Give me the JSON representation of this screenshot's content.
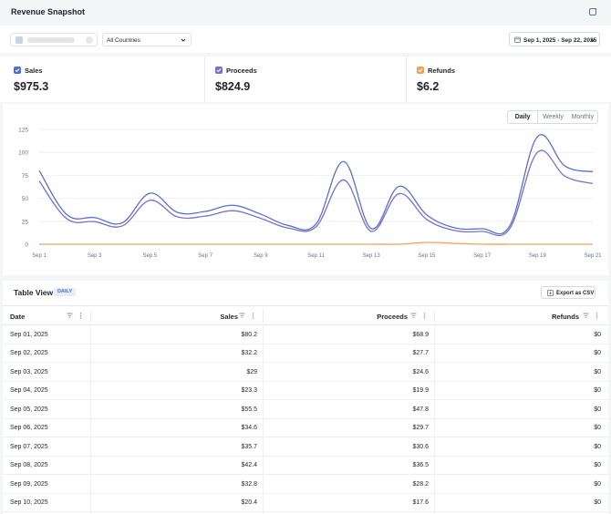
{
  "header": {
    "title": "Revenue Snapshot"
  },
  "filters": {
    "country": "All Countries",
    "date_range": "Sep 1, 2025 - Sep 22, 2025"
  },
  "metrics": [
    {
      "label": "Sales",
      "value": "$975.3",
      "color": "#4a6fd8"
    },
    {
      "label": "Proceeds",
      "value": "$824.9",
      "color": "#7a6fd6"
    },
    {
      "label": "Refunds",
      "value": "$6.2",
      "color": "#f0a25a"
    }
  ],
  "granularity": {
    "options": [
      "Daily",
      "Weekly",
      "Monthly"
    ],
    "selected": "Daily"
  },
  "chart_data": {
    "type": "line",
    "x": [
      "Sep 1",
      "Sep 2",
      "Sep 3",
      "Sep 4",
      "Sep 5",
      "Sep 6",
      "Sep 7",
      "Sep 8",
      "Sep 9",
      "Sep 10",
      "Sep 11",
      "Sep 12",
      "Sep 13",
      "Sep 14",
      "Sep 15",
      "Sep 16",
      "Sep 17",
      "Sep 18",
      "Sep 19",
      "Sep 20",
      "Sep 21"
    ],
    "x_tick_labels": [
      "Sep 1",
      "Sep 3",
      "Sep 5",
      "Sep 7",
      "Sep 9",
      "Sep 11",
      "Sep 13",
      "Sep 15",
      "Sep 17",
      "Sep 19",
      "Sep 21"
    ],
    "y_ticks": [
      0,
      25,
      50,
      75,
      100,
      125
    ],
    "ylim": [
      0,
      125
    ],
    "grid": true,
    "series": [
      {
        "color": "#5a6fd0",
        "values": [
          80.2,
          32.2,
          29,
          23.3,
          55.5,
          34.6,
          35.7,
          42.4,
          32.8,
          20.4,
          22,
          90,
          17,
          63,
          32,
          18,
          17,
          20,
          117,
          85,
          79
        ]
      },
      {
        "color": "#7a70c8",
        "values": [
          68.9,
          27.7,
          24.6,
          19.9,
          47.8,
          29.7,
          30.6,
          36.5,
          28.2,
          17.6,
          19,
          70,
          14,
          55,
          27,
          15,
          14,
          17,
          100,
          74,
          66
        ]
      },
      {
        "color": "#f0a25a",
        "values": [
          0,
          0,
          0,
          0,
          0,
          0,
          0,
          0,
          0,
          0,
          0,
          0,
          0,
          0,
          2,
          1,
          0,
          0,
          0,
          0,
          0
        ]
      }
    ]
  },
  "table": {
    "title": "Table View",
    "badge": "DAILY",
    "export_label": "Export as CSV",
    "columns": [
      "Date",
      "Sales",
      "Proceeds",
      "Refunds"
    ],
    "rows": [
      [
        "Sep 01, 2025",
        "$80.2",
        "$68.9",
        "$0"
      ],
      [
        "Sep 02, 2025",
        "$32.2",
        "$27.7",
        "$0"
      ],
      [
        "Sep 03, 2025",
        "$29",
        "$24.6",
        "$0"
      ],
      [
        "Sep 04, 2025",
        "$23.3",
        "$19.9",
        "$0"
      ],
      [
        "Sep 05, 2025",
        "$55.5",
        "$47.8",
        "$0"
      ],
      [
        "Sep 06, 2025",
        "$34.6",
        "$29.7",
        "$0"
      ],
      [
        "Sep 07, 2025",
        "$35.7",
        "$30.6",
        "$0"
      ],
      [
        "Sep 08, 2025",
        "$42.4",
        "$36.5",
        "$0"
      ],
      [
        "Sep 09, 2025",
        "$32.8",
        "$28.2",
        "$0"
      ],
      [
        "Sep 10, 2025",
        "$20.4",
        "$17.6",
        "$0"
      ]
    ]
  }
}
